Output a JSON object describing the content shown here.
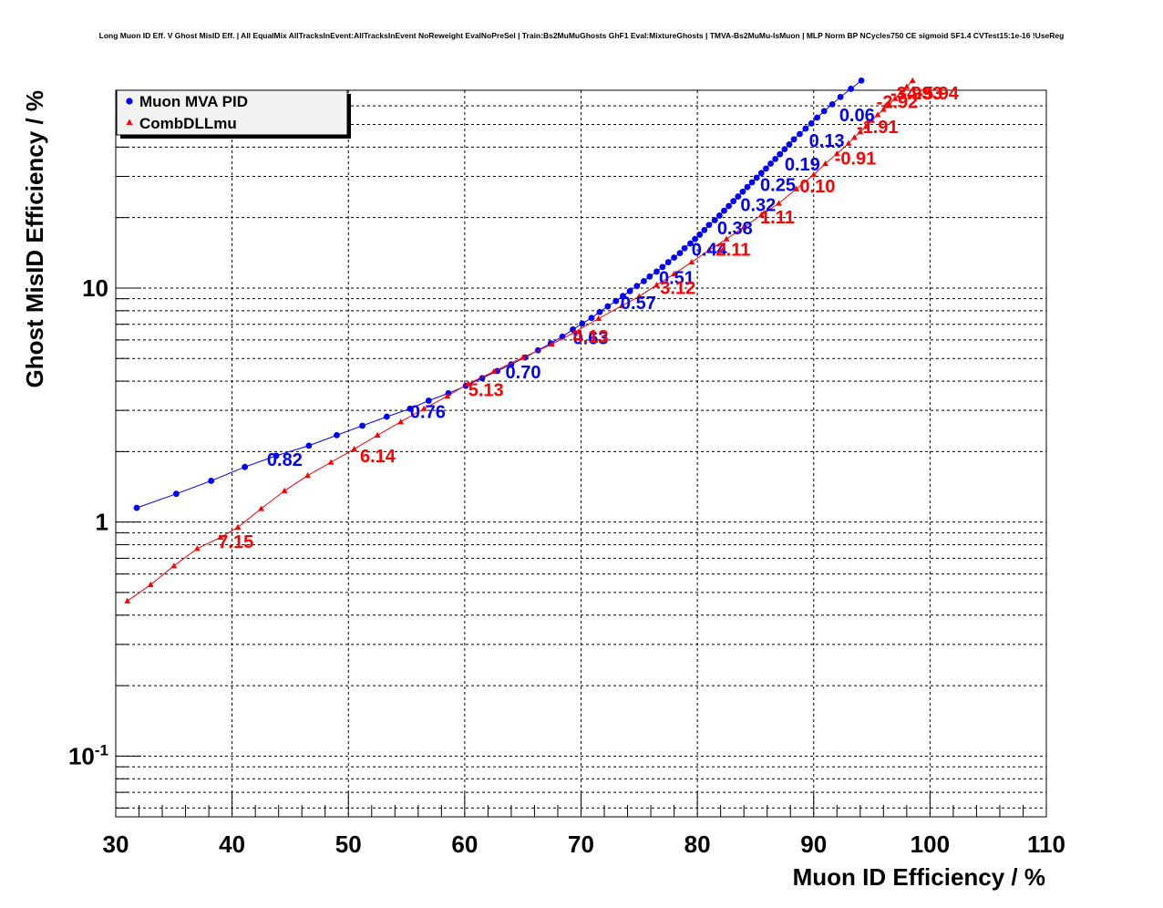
{
  "chart_data": {
    "type": "scatter",
    "title": "Long Muon ID Eff. V Ghost MisID Eff. | All EqualMix AllTracksInEvent:AllTracksInEvent NoReweight EvalNoPreSel | Train:Bs2MuMuGhosts GhF1 Eval:MixtureGhosts | TMVA-Bs2MuMu-IsMuon | MLP Norm BP NCycles750 CE sigmoid SF1.4 CVTest15:1e-16 !UseReg",
    "xlabel": "Muon ID Efficiency / %",
    "ylabel": "Ghost MisID Efficiency / %",
    "xlim": [
      30,
      110
    ],
    "ylim": [
      0.055,
      70
    ],
    "y_scale": "log",
    "grid": true,
    "x_ticks": [
      "30",
      "40",
      "50",
      "60",
      "70",
      "80",
      "90",
      "100",
      "110"
    ],
    "y_ticks": [
      "10^-1",
      "1",
      "10"
    ],
    "legend_position": "top-left",
    "series": [
      {
        "name": "Muon MVA PID",
        "color": "#0000ff",
        "marker": "circle",
        "x": [
          31.8,
          35.2,
          38.2,
          41.1,
          43.8,
          46.6,
          49.0,
          51.2,
          53.3,
          55.3,
          56.9,
          58.6,
          60.1,
          61.5,
          62.8,
          64.0,
          65.2,
          66.3,
          67.4,
          68.4,
          69.3,
          70.1,
          70.9,
          71.6,
          72.3,
          73.0,
          73.6,
          74.2,
          74.8,
          75.4,
          75.9,
          76.5,
          77.0,
          77.5,
          78.0,
          78.5,
          78.9,
          79.4,
          79.8,
          80.2,
          80.6,
          81.0,
          81.5,
          81.9,
          82.3,
          82.7,
          83.1,
          83.5,
          83.9,
          84.3,
          84.7,
          85.1,
          85.5,
          85.9,
          86.3,
          86.7,
          87.1,
          87.5,
          87.9,
          88.3,
          88.8,
          89.3,
          89.8,
          90.3,
          90.9,
          91.6,
          92.3,
          93.2,
          94.1
        ],
        "y": [
          1.15,
          1.32,
          1.5,
          1.72,
          1.92,
          2.12,
          2.35,
          2.58,
          2.82,
          3.05,
          3.3,
          3.55,
          3.82,
          4.12,
          4.42,
          4.72,
          5.05,
          5.42,
          5.8,
          6.2,
          6.65,
          7.05,
          7.45,
          7.9,
          8.35,
          8.8,
          9.25,
          9.7,
          10.2,
          10.7,
          11.2,
          11.75,
          12.3,
          12.9,
          13.5,
          14.1,
          14.8,
          15.5,
          16.2,
          16.9,
          17.7,
          18.6,
          19.5,
          20.4,
          21.4,
          22.4,
          23.5,
          24.6,
          25.8,
          27.0,
          28.3,
          29.6,
          31.0,
          32.4,
          34.0,
          35.6,
          37.3,
          39.2,
          41.1,
          43.2,
          45.5,
          48.0,
          50.5,
          53.5,
          57.0,
          61.0,
          65.5,
          71.0,
          77.0
        ]
      },
      {
        "name": "CombDLLmu",
        "color": "#ff0000",
        "marker": "triangle",
        "x": [
          31.0,
          33.0,
          35.0,
          37.0,
          39.0,
          40.5,
          42.5,
          44.5,
          46.5,
          48.5,
          50.5,
          52.5,
          54.5,
          56.5,
          58.5,
          60.3,
          62.5,
          65.0,
          67.5,
          69.5,
          71.5,
          73.5,
          75.0,
          76.5,
          78.0,
          79.5,
          81.0,
          82.5,
          84.0,
          85.5,
          87.0,
          88.5,
          90.0,
          91.0,
          92.0,
          93.0,
          93.5,
          94.0,
          94.5,
          95.0,
          95.5,
          96.0,
          96.5,
          97.0,
          97.5,
          98.0,
          98.5
        ],
        "y": [
          0.46,
          0.54,
          0.65,
          0.77,
          0.86,
          0.95,
          1.14,
          1.36,
          1.58,
          1.8,
          2.05,
          2.35,
          2.68,
          3.05,
          3.45,
          3.9,
          4.4,
          5.05,
          5.75,
          6.5,
          7.4,
          8.4,
          9.2,
          10.3,
          11.5,
          12.9,
          14.5,
          16.2,
          18.2,
          20.5,
          23.0,
          26.5,
          30.5,
          34.0,
          37.5,
          41.5,
          44.0,
          46.5,
          49.0,
          52.0,
          55.0,
          58.0,
          61.0,
          64.5,
          68.5,
          72.5,
          77.0
        ]
      }
    ],
    "annotations": {
      "Muon MVA PID": [
        {
          "text": "0.82",
          "x": 43.0,
          "y": 1.9
        },
        {
          "text": "0.76",
          "x": 55.3,
          "y": 3.05
        },
        {
          "text": "0.70",
          "x": 63.5,
          "y": 4.5
        },
        {
          "text": "0.63",
          "x": 69.3,
          "y": 6.3
        },
        {
          "text": "0.57",
          "x": 73.4,
          "y": 8.9
        },
        {
          "text": "0.51",
          "x": 76.7,
          "y": 11.4
        },
        {
          "text": "0.44",
          "x": 79.5,
          "y": 15.0
        },
        {
          "text": "0.38",
          "x": 81.7,
          "y": 18.6
        },
        {
          "text": "0.32",
          "x": 83.7,
          "y": 23.3
        },
        {
          "text": "0.25",
          "x": 85.4,
          "y": 28.4
        },
        {
          "text": "0.19",
          "x": 87.5,
          "y": 34.8
        },
        {
          "text": "0.13",
          "x": 89.6,
          "y": 43.9
        },
        {
          "text": "0.06",
          "x": 92.2,
          "y": 56.5
        }
      ],
      "CombDLLmu": [
        {
          "text": "7.15",
          "x": 38.8,
          "y": 0.85
        },
        {
          "text": "6.14",
          "x": 51.0,
          "y": 1.97
        },
        {
          "text": "5.13",
          "x": 60.3,
          "y": 3.77
        },
        {
          "text": "4.13",
          "x": 69.3,
          "y": 6.38
        },
        {
          "text": "3.12",
          "x": 76.8,
          "y": 10.3
        },
        {
          "text": "2.11",
          "x": 81.6,
          "y": 15.0
        },
        {
          "text": "1.11",
          "x": 85.4,
          "y": 20.7
        },
        {
          "text": "0.10",
          "x": 88.8,
          "y": 28.1
        },
        {
          "text": "-0.91",
          "x": 91.8,
          "y": 36.8
        },
        {
          "text": "-1.91",
          "x": 93.7,
          "y": 50.3
        },
        {
          "text": "-2.92",
          "x": 95.4,
          "y": 64.2
        },
        {
          "text": "-3.93",
          "x": 96.6,
          "y": 81.9
        },
        {
          "text": "-4.93",
          "x": 97.5,
          "y": 99.1
        },
        {
          "text": "-5.94",
          "x": 98.9,
          "y": 116.0
        }
      ]
    }
  }
}
